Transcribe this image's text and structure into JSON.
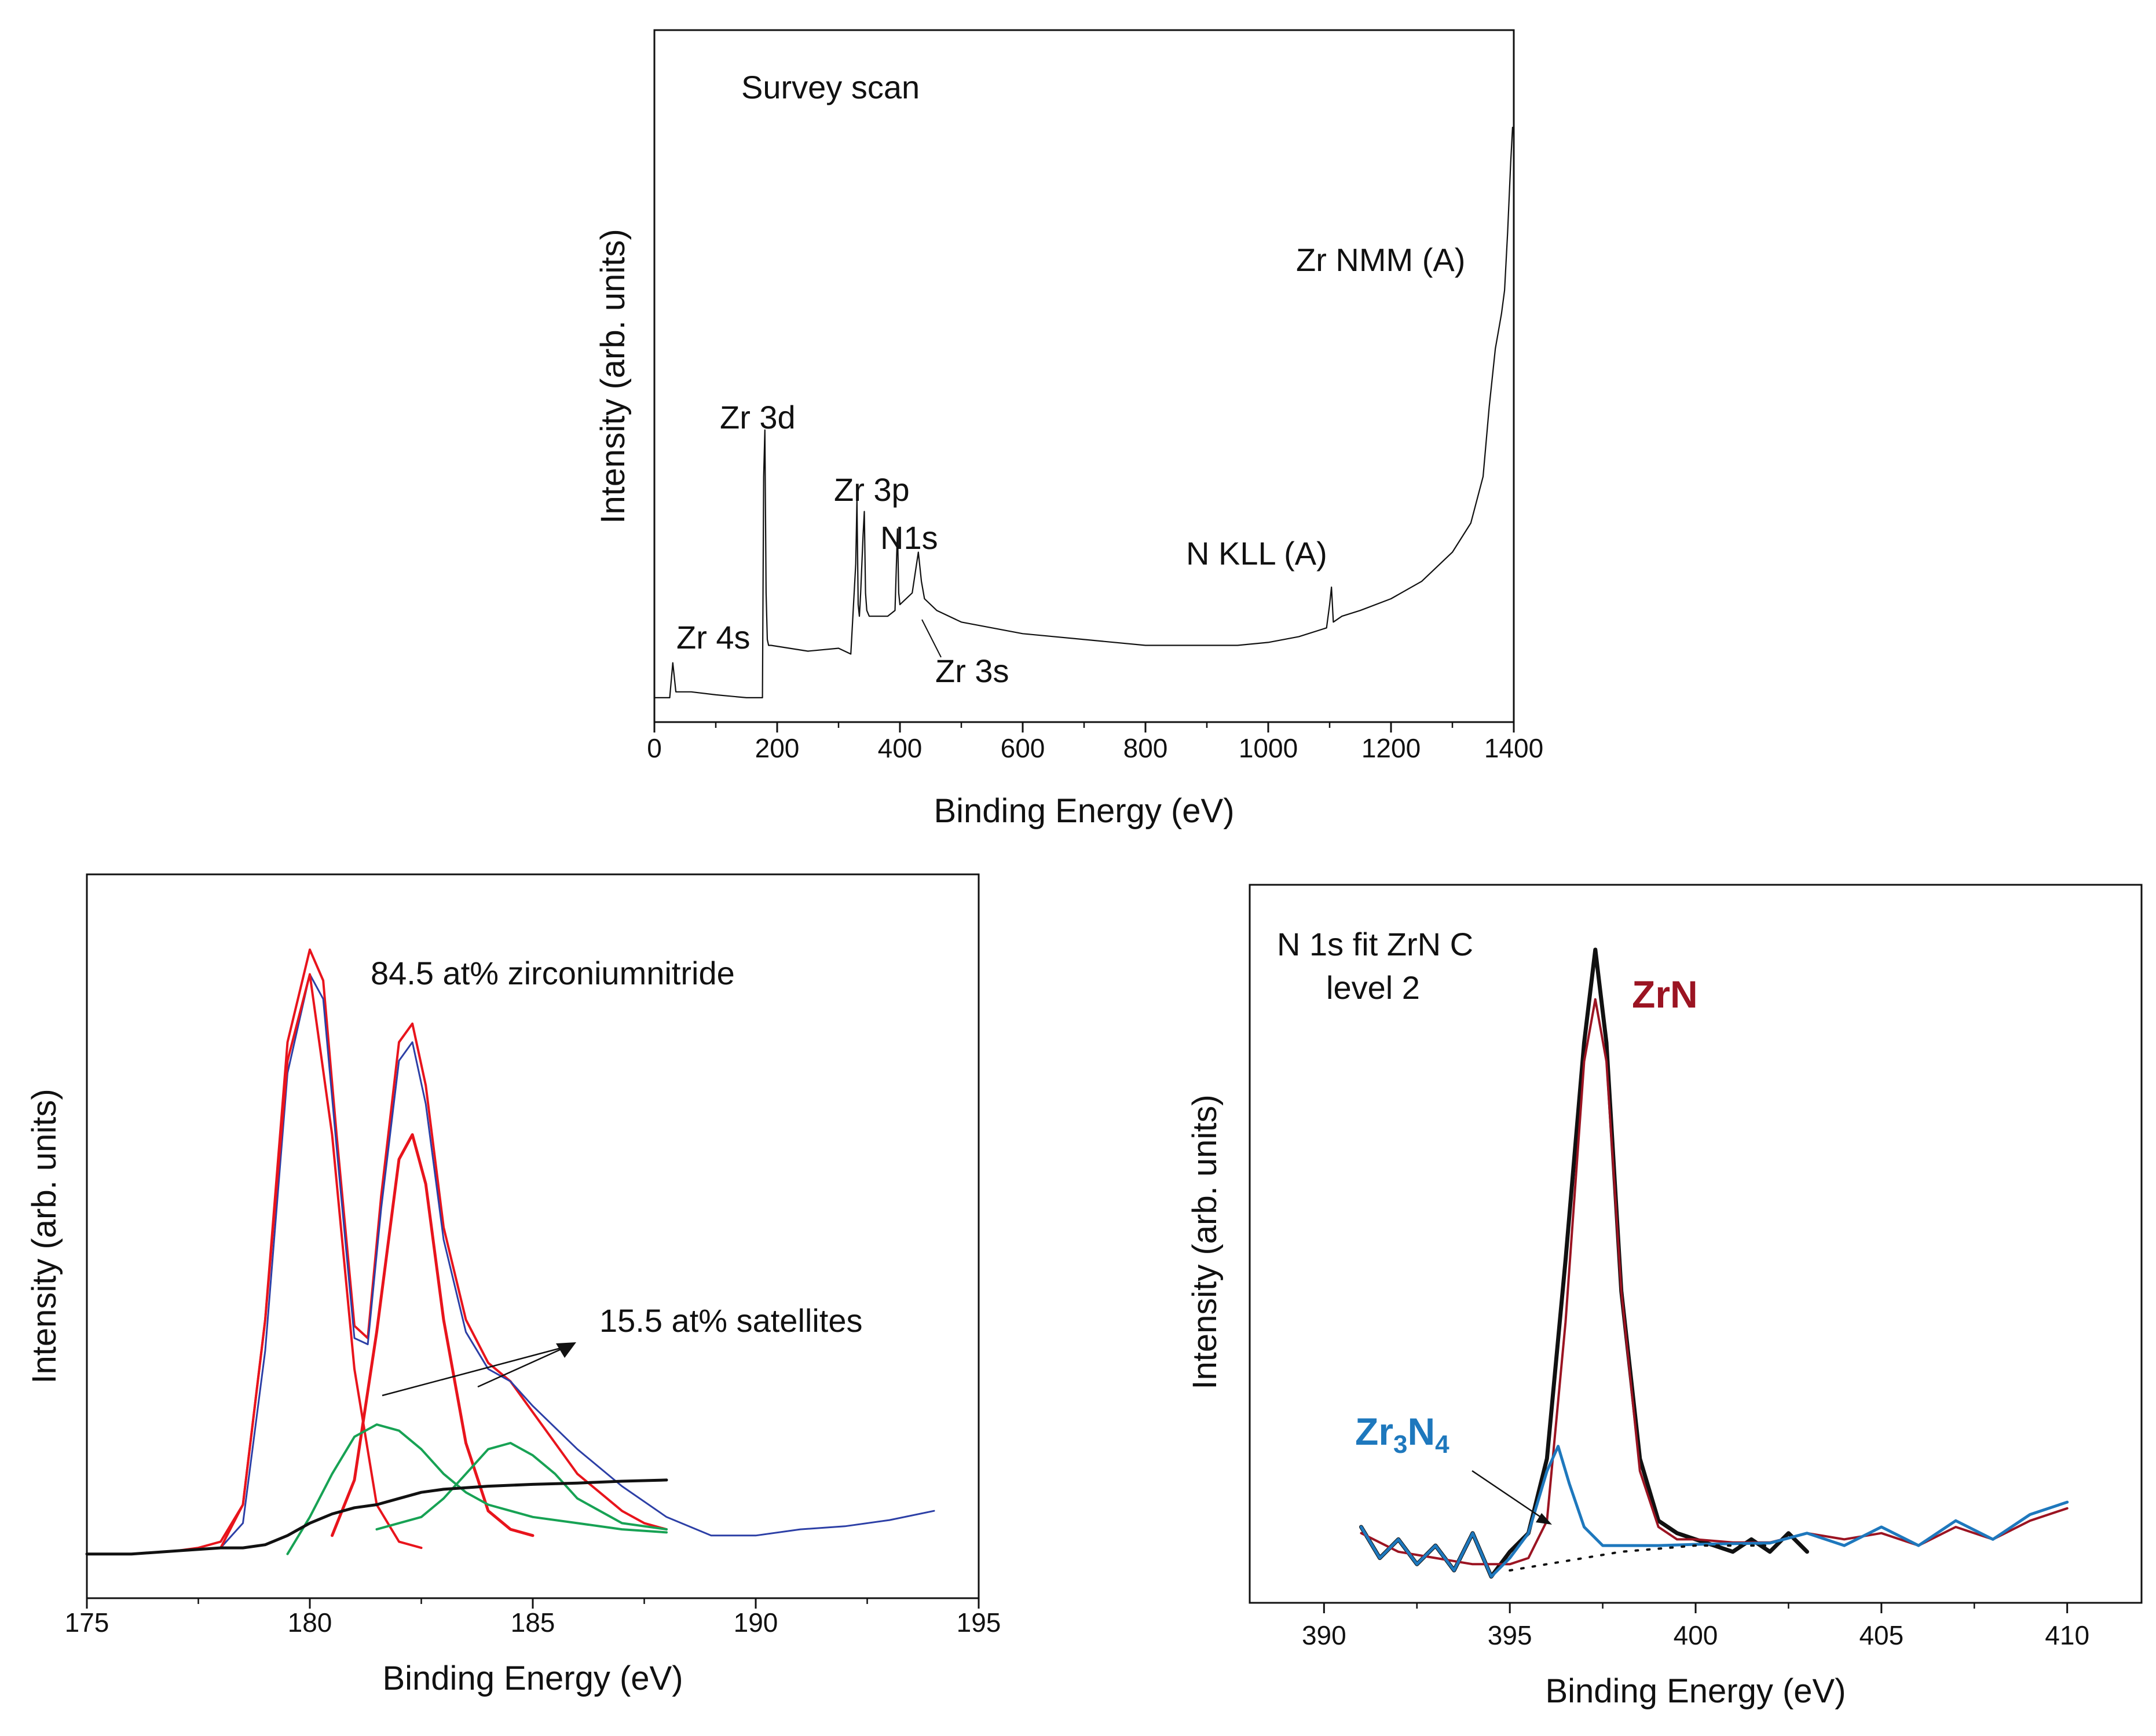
{
  "colors": {
    "axis": "#111111",
    "survey": "#111111",
    "red": "#e8141c",
    "green": "#17a254",
    "blue": "#2c3fa6",
    "black": "#111111",
    "zrn": "#9b1422",
    "zr3n4": "#1e78bd"
  },
  "chart_data": [
    {
      "type": "line",
      "id": "survey",
      "title": "Survey scan",
      "xlabel": "Binding Energy (eV)",
      "ylabel": "Intensity (arb. units)",
      "xlim": [
        0,
        1400
      ],
      "ylim": [
        0,
        100
      ],
      "xticks": [
        "0",
        "200",
        "400",
        "600",
        "800",
        "1000",
        "1200",
        "1400"
      ],
      "xtick_values": [
        0,
        200,
        400,
        600,
        800,
        1000,
        1200,
        1400
      ],
      "annotations": [
        "Zr 4s",
        "Zr 3d",
        "Zr 3p",
        "N1s",
        "Zr 3s",
        "N KLL (A)",
        "Zr NMM (A)"
      ],
      "series": [
        {
          "name": "survey",
          "x": [
            0,
            25,
            30,
            35,
            45,
            60,
            100,
            150,
            176,
            178,
            180,
            182,
            184,
            186,
            190,
            250,
            300,
            320,
            328,
            330,
            332,
            334,
            336,
            340,
            342,
            344,
            346,
            350,
            380,
            392,
            396,
            398,
            400,
            420,
            430,
            435,
            440,
            460,
            500,
            600,
            700,
            800,
            900,
            950,
            1000,
            1050,
            1095,
            1100,
            1103,
            1106,
            1120,
            1150,
            1200,
            1250,
            1300,
            1330,
            1350,
            1360,
            1370,
            1375,
            1380,
            1385,
            1390,
            1395,
            1398
          ],
          "y": [
            2,
            2,
            8,
            3,
            3,
            3,
            2.5,
            2,
            2,
            40,
            48,
            20,
            12,
            11,
            11,
            10,
            10.5,
            9.5,
            25,
            36,
            18,
            16,
            20,
            30,
            34,
            20,
            17,
            16,
            16,
            17,
            31,
            20,
            18,
            20,
            27,
            22,
            19,
            17,
            15,
            13,
            12,
            11,
            11,
            11,
            11.5,
            12.5,
            14,
            18,
            21,
            15,
            16,
            17,
            19,
            22,
            27,
            32,
            40,
            52,
            62,
            65,
            68,
            72,
            82,
            94,
            100
          ]
        }
      ]
    },
    {
      "type": "line",
      "id": "zr3d",
      "xlabel": "Binding Energy (eV)",
      "ylabel": "Intensity (arb. units)",
      "xlim": [
        175,
        195
      ],
      "ylim": [
        0,
        100
      ],
      "xticks": [
        "175",
        "180",
        "185",
        "190",
        "195"
      ],
      "xtick_values": [
        175,
        180,
        185,
        190,
        195
      ],
      "annotations": [
        "84.5 at% zirconiumnitride",
        "15.5 at%  satellites"
      ],
      "series": [
        {
          "name": "measured-red",
          "x": [
            175,
            176,
            177,
            177.5,
            178,
            178.5,
            179,
            179.5,
            180,
            180.3,
            180.6,
            181,
            181.3,
            181.6,
            182,
            182.3,
            182.6,
            183,
            183.5,
            184,
            184.5,
            185,
            185.5,
            186,
            186.5,
            187,
            187.5,
            188
          ],
          "y": [
            2,
            2,
            2.5,
            3,
            4,
            10,
            40,
            85,
            100,
            95,
            70,
            39,
            37,
            60,
            85,
            88,
            78,
            55,
            40,
            33,
            30,
            25,
            20,
            15,
            12,
            9,
            7,
            6
          ]
        },
        {
          "name": "envelope-blue",
          "x": [
            175,
            176,
            177,
            178,
            178.5,
            179,
            179.5,
            180,
            180.3,
            180.6,
            181,
            181.3,
            181.6,
            182,
            182.3,
            182.6,
            183,
            183.5,
            184,
            184.5,
            185,
            186,
            187,
            188,
            189,
            190,
            191,
            192,
            193,
            194
          ],
          "y": [
            2,
            2,
            2.5,
            3,
            7,
            35,
            80,
            96,
            92,
            68,
            37,
            36,
            58,
            82,
            85,
            75,
            53,
            38,
            32,
            30,
            26,
            19,
            13,
            8,
            5,
            5,
            6,
            6.5,
            7.5,
            9
          ]
        },
        {
          "name": "fit-peak1-red",
          "x": [
            178,
            178.5,
            179,
            179.5,
            180,
            180.5,
            181,
            181.5,
            182,
            182.5
          ],
          "y": [
            3,
            10,
            40,
            82,
            96,
            70,
            32,
            10,
            4,
            3
          ]
        },
        {
          "name": "fit-peak2-red",
          "x": [
            180.5,
            181,
            181.5,
            182,
            182.3,
            182.6,
            183,
            183.5,
            184,
            184.5,
            185
          ],
          "y": [
            5,
            14,
            38,
            66,
            70,
            62,
            40,
            20,
            9,
            6,
            5
          ]
        },
        {
          "name": "satellite1-green",
          "x": [
            179.5,
            180,
            180.5,
            181,
            181.5,
            182,
            182.5,
            183,
            183.5,
            184,
            185,
            186,
            187,
            188
          ],
          "y": [
            2,
            8,
            15,
            21,
            23,
            22,
            19,
            15,
            12,
            10,
            8,
            7,
            6,
            5.5
          ]
        },
        {
          "name": "satellite2-green",
          "x": [
            181.5,
            182,
            182.5,
            183,
            183.5,
            184,
            184.5,
            185,
            185.5,
            186,
            187,
            188
          ],
          "y": [
            6,
            7,
            8,
            11,
            15,
            19,
            20,
            18,
            15,
            11,
            7,
            6
          ]
        },
        {
          "name": "background-black",
          "x": [
            175,
            176,
            177,
            178,
            178.5,
            179,
            179.5,
            180,
            180.5,
            181,
            181.5,
            182,
            182.5,
            183,
            184,
            185,
            186,
            187,
            188
          ],
          "y": [
            2,
            2,
            2.5,
            3,
            3,
            3.5,
            5,
            7,
            8.5,
            9.5,
            10,
            11,
            12,
            12.5,
            13,
            13.3,
            13.5,
            13.8,
            14
          ]
        }
      ]
    },
    {
      "type": "line",
      "id": "n1s",
      "title": "N 1s fit ZrN C level 2",
      "title_lines": [
        "N 1s fit ZrN C",
        "level 2"
      ],
      "xlabel": "Binding Energy (eV)",
      "ylabel": "Intensity (arb. units)",
      "xlim": [
        388,
        412
      ],
      "ylim": [
        0,
        100
      ],
      "xticks": [
        "390",
        "395",
        "400",
        "405",
        "410"
      ],
      "xtick_values": [
        390,
        395,
        400,
        405,
        410
      ],
      "annotations": [
        "ZrN",
        "Zr3N4"
      ],
      "series": [
        {
          "name": "measured-black",
          "x": [
            391,
            391.5,
            392,
            392.5,
            393,
            393.5,
            394,
            394.5,
            395,
            395.5,
            396,
            396.5,
            397,
            397.3,
            397.6,
            398,
            398.5,
            399,
            399.5,
            400,
            400.5,
            401,
            401.5,
            402,
            402.5,
            403
          ],
          "y": [
            7,
            2,
            5,
            1,
            4,
            0,
            6,
            -1,
            3,
            6,
            18,
            50,
            85,
            100,
            85,
            45,
            18,
            8,
            6,
            5,
            4,
            3,
            5,
            3,
            6,
            3
          ]
        },
        {
          "name": "fit-red",
          "x": [
            391,
            392,
            393,
            394,
            395,
            395.5,
            396,
            396.5,
            397,
            397.3,
            397.6,
            398,
            398.5,
            399,
            399.5,
            400,
            401,
            402,
            403,
            404,
            405,
            406,
            407,
            408,
            409,
            410
          ],
          "y": [
            6,
            3,
            2,
            1,
            1,
            2,
            8,
            40,
            82,
            92,
            82,
            45,
            16,
            7,
            5,
            5,
            4.5,
            4.5,
            6,
            5,
            6,
            4,
            7,
            5,
            8,
            10
          ]
        },
        {
          "name": "zr3n4-blue",
          "x": [
            391,
            391.5,
            392,
            392.5,
            393,
            393.5,
            394,
            394.5,
            395,
            395.5,
            396,
            396.3,
            396.6,
            397,
            397.5,
            398,
            399,
            400,
            401,
            402,
            403,
            404,
            405,
            406,
            407,
            408,
            409,
            410
          ],
          "y": [
            7,
            2,
            5,
            1,
            4,
            0,
            6,
            -1,
            2,
            6,
            16,
            20,
            14,
            7,
            4,
            4,
            4,
            4.2,
            4.3,
            4.4,
            6,
            4,
            7,
            4,
            8,
            5,
            9,
            11
          ]
        },
        {
          "name": "background-dotted",
          "x": [
            395,
            396,
            397,
            398,
            399,
            400,
            401,
            402
          ],
          "y": [
            0,
            1,
            2,
            3,
            3.5,
            4,
            4,
            4
          ]
        }
      ]
    }
  ]
}
